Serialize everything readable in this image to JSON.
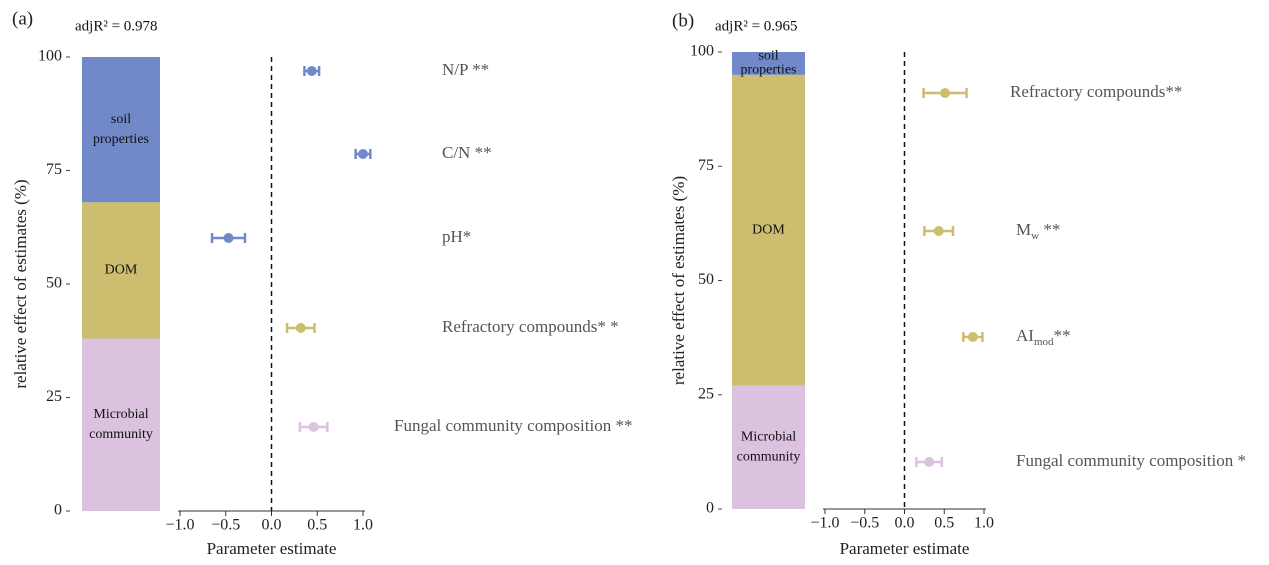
{
  "chart_data": [
    {
      "type": "forest",
      "panel": "(a)",
      "annotation": "adjR² = 0.978",
      "ylabel": "relative effect of estimates (%)",
      "xlabel": "Parameter estimate",
      "ylim": [
        0,
        100
      ],
      "yticks": [
        0,
        25,
        50,
        75,
        100
      ],
      "xlim": [
        -1,
        1
      ],
      "xticks": [
        {
          "value": -1,
          "label": "−1.0"
        },
        {
          "value": -0.5,
          "label": "−0.5"
        },
        {
          "value": 0,
          "label": "0.0"
        },
        0.5,
        {
          "value": 1,
          "label": "1.0"
        }
      ],
      "segments": [
        {
          "name": [
            "Microbial",
            "community"
          ],
          "color": "#dbc2de",
          "value": 38
        },
        {
          "name": [
            "DOM"
          ],
          "color": "#cdbd6e",
          "value": 30
        },
        {
          "name": [
            "soil",
            "properties"
          ],
          "color": "#7189c8",
          "value": 32
        }
      ],
      "estimates": [
        {
          "label": "N/P **",
          "color": "#7189c8",
          "value": 0.44,
          "error": 0.08
        },
        {
          "label": "C/N **",
          "color": "#7189c8",
          "value": 1.0,
          "error": 0.08
        },
        {
          "label": "pH*",
          "color": "#7189c8",
          "value": -0.47,
          "error": 0.18
        },
        {
          "label": "Refractory compounds* *",
          "color": "#cdbd6e",
          "value": 0.32,
          "error": 0.15
        },
        {
          "label": "Fungal community composition **",
          "color": "#dbc2de",
          "value": 0.46,
          "error": 0.15
        }
      ]
    },
    {
      "type": "forest",
      "panel": "(b)",
      "annotation": "adjR² = 0.965",
      "ylabel": "relative effect of estimates (%)",
      "xlabel": "Parameter estimate",
      "ylim": [
        0,
        100
      ],
      "yticks": [
        0,
        25,
        50,
        75,
        100
      ],
      "xlim": [
        -1,
        1
      ],
      "xticks": [
        {
          "value": -1,
          "label": "−1.0"
        },
        {
          "value": -0.5,
          "label": "−0.5"
        },
        {
          "value": 0,
          "label": "0.0"
        },
        0.5,
        {
          "value": 1,
          "label": "1.0"
        }
      ],
      "segments": [
        {
          "name": [
            "Microbial",
            "community"
          ],
          "color": "#dbc2de",
          "value": 27
        },
        {
          "name": [
            "DOM"
          ],
          "color": "#cdbd6e",
          "value": 68
        },
        {
          "name": [
            "soil",
            "properties"
          ],
          "color": "#7189c8",
          "value": 5
        }
      ],
      "estimates": [
        {
          "label": "Refractory compounds**",
          "color": "#cdbd6e",
          "value": 0.51,
          "error": 0.27
        },
        {
          "label": {
            "text": "M",
            "sub": "w",
            "suffix": " **"
          },
          "color": "#cdbd6e",
          "value": 0.43,
          "error": 0.18
        },
        {
          "label": {
            "text": "AI",
            "sub": "mod",
            "suffix": "**"
          },
          "color": "#cdbd6e",
          "value": 0.86,
          "error": 0.12
        },
        {
          "label": "Fungal community composition *",
          "color": "#dbc2de",
          "value": 0.31,
          "error": 0.16
        }
      ]
    }
  ]
}
